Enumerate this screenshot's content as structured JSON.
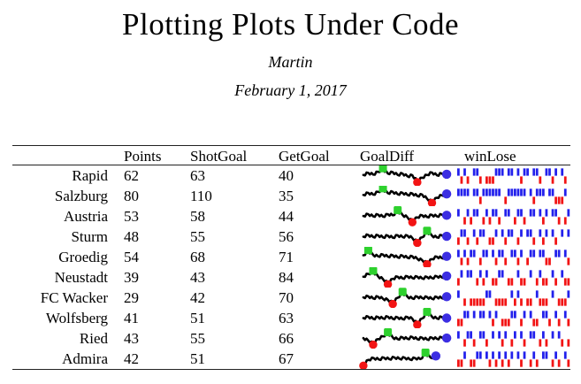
{
  "document": {
    "title": "Plotting Plots Under Code",
    "author": "Martin",
    "date": "February 1, 2017"
  },
  "colors": {
    "rule": "#222222",
    "spark_line": "#000000",
    "marker_max": "#2ed12e",
    "marker_min": "#f21414",
    "marker_last": "#3c2ee2",
    "win_bar": "#2220ec",
    "loss_bar": "#f21414"
  },
  "table": {
    "columns": [
      "",
      "Points",
      "ShotGoal",
      "GetGoal",
      "GoalDiff",
      "winLose"
    ],
    "rows": [
      {
        "team": "Rapid",
        "points": "62",
        "shotgoal": "63",
        "getgoal": "40",
        "goaldiff": {
          "values": [
            0.2,
            0.8,
            0.3,
            1.1,
            1.8,
            0.6,
            1.0,
            0.2,
            0.6,
            -0.2,
            0.1,
            -1.6,
            -0.6,
            0.2,
            0.9,
            0.1,
            0.6,
            0.4
          ],
          "span": 1
        },
        "winlose": "WLWLDW WLDLLL WWWDWW DWLWWD WWLDWW LWDWLD"
      },
      {
        "team": "Salzburg",
        "points": "80",
        "shotgoal": "110",
        "getgoal": "35",
        "goaldiff": {
          "values": [
            0.3,
            0.9,
            0.4,
            1.2,
            1.9,
            0.8,
            1.2,
            0.5,
            0.9,
            0.3,
            0.7,
            0.0,
            0.4,
            -0.8,
            -1.7,
            -0.5,
            0.2,
            0.6
          ],
          "span": 1
        },
        "winlose": "WWWWDW WLWWWW WWDLWW WWWWDW LWWWDW WLLLWD"
      },
      {
        "team": "Austria",
        "points": "53",
        "shotgoal": "58",
        "getgoal": "44",
        "goaldiff": {
          "values": [
            0.1,
            0.6,
            0.0,
            0.5,
            -0.1,
            0.6,
            0.3,
            1.5,
            0.4,
            -0.3,
            -1.4,
            -0.3,
            0.3,
            -0.2,
            0.4,
            0.0,
            0.5,
            0.3
          ],
          "span": 1
        },
        "winlose": "WDLWLW WDLWLW WLDWWD LWWLDW WDWLWD WWLDLW"
      },
      {
        "team": "Sturm",
        "points": "48",
        "shotgoal": "55",
        "getgoal": "56",
        "goaldiff": {
          "values": [
            0.0,
            0.5,
            -0.1,
            0.4,
            -0.2,
            0.3,
            -0.3,
            0.4,
            -0.1,
            0.3,
            -0.4,
            -1.5,
            -0.2,
            1.4,
            0.3,
            -0.2,
            0.4,
            0.1
          ],
          "span": 1
        },
        "winlose": "LWWLDW LWWDLL WDWLWW DLWDWW LDWLWD WLDWDW"
      },
      {
        "team": "Groedig",
        "points": "54",
        "shotgoal": "68",
        "getgoal": "71",
        "goaldiff": {
          "values": [
            0.5,
            1.7,
            0.6,
            0.2,
            0.7,
            0.1,
            0.5,
            -0.1,
            0.4,
            -0.2,
            0.2,
            -0.5,
            -0.9,
            -1.8,
            -0.6,
            0.1,
            -0.3,
            0.2
          ],
          "span": 1
        },
        "winlose": "WLWLWW DLWWDW LWWLDW WLWDLW WDWWLL DWWDWL"
      },
      {
        "team": "Neustadt",
        "points": "39",
        "shotgoal": "43",
        "getgoal": "84",
        "goaldiff": {
          "values": [
            0.2,
            1.0,
            1.6,
            0.3,
            -0.5,
            -1.7,
            -0.4,
            0.2,
            -0.3,
            0.3,
            -0.2,
            0.2,
            -0.3,
            0.1,
            -0.2,
            0.3,
            0.0,
            0.4
          ],
          "span": 1
        },
        "winlose": "LWDWWD LWLWDL LWWDLL DWLLDW DLWLLD WLDWLL"
      },
      {
        "team": "FC Wacker",
        "points": "29",
        "shotgoal": "42",
        "getgoal": "70",
        "goaldiff": {
          "values": [
            0.1,
            0.4,
            -0.2,
            0.3,
            -0.3,
            -0.6,
            -1.5,
            0.0,
            1.4,
            0.3,
            -0.2,
            0.3,
            -0.1,
            0.2,
            -0.3,
            0.2,
            -0.1,
            0.3
          ],
          "span": 1
        },
        "winlose": "WDLDLL LLLWWD LLLLDW LWLDLL DWLLLD WDLLLW"
      },
      {
        "team": "Wolfsberg",
        "points": "41",
        "shotgoal": "51",
        "getgoal": "63",
        "goaldiff": {
          "values": [
            0.0,
            0.4,
            -0.2,
            0.3,
            -0.1,
            0.4,
            -0.2,
            0.2,
            -0.3,
            0.3,
            -0.2,
            -1.6,
            -0.1,
            1.5,
            0.4,
            -0.1,
            0.3,
            0.0
          ],
          "span": 1
        },
        "winlose": "LLWWDW DWWDWL WDLLLW WDLWDW LLDWWL DWLDWL"
      },
      {
        "team": "Ried",
        "points": "43",
        "shotgoal": "55",
        "getgoal": "66",
        "goaldiff": {
          "values": [
            0.1,
            -0.6,
            -1.5,
            -0.2,
            0.6,
            1.5,
            0.3,
            -0.2,
            0.3,
            -0.1,
            0.4,
            -0.2,
            0.2,
            -0.3,
            0.2,
            -0.1,
            0.3,
            0.1
          ],
          "span": 1
        },
        "winlose": "WDLWWL DWWLDW DWLWDL WDWLDW WDLWLD WDWLDL"
      },
      {
        "team": "Admira",
        "points": "42",
        "shotgoal": "51",
        "getgoal": "67",
        "goaldiff": {
          "values": [
            -1.7,
            -0.3,
            0.2,
            -0.2,
            0.3,
            -0.1,
            0.4,
            0.0,
            0.3,
            -0.2,
            0.2,
            -0.1,
            1.5,
            0.3,
            0.8
          ],
          "span": 0.87
        },
        "winlose": "LLWDLL WWDWLW LWLWLW DWLWDL WLDWWD LWLDWL"
      }
    ]
  }
}
